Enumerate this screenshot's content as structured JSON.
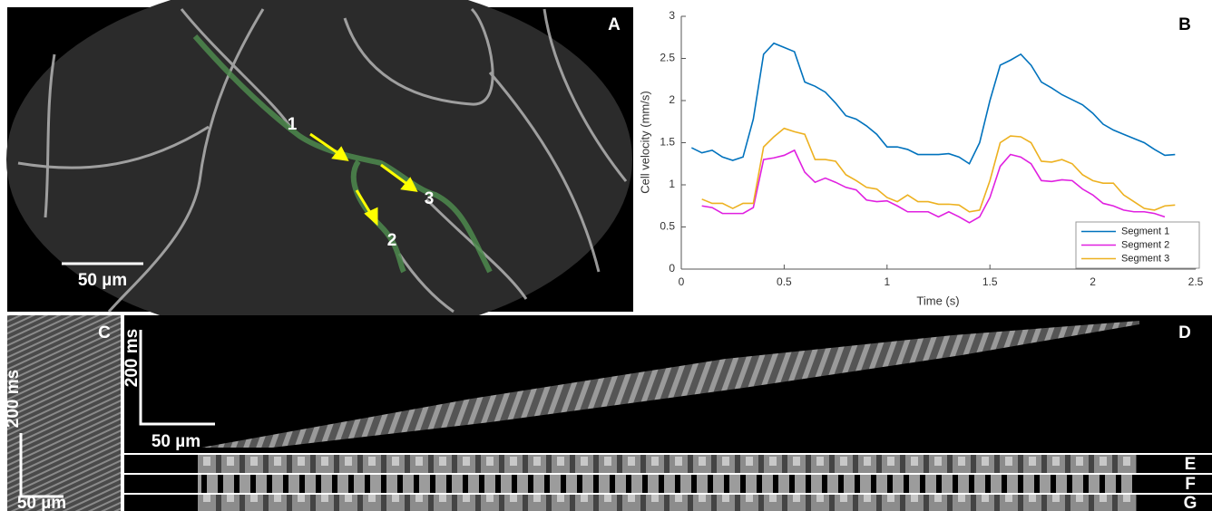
{
  "panels": {
    "a": {
      "label": "A",
      "markers": [
        "1",
        "2",
        "3"
      ],
      "scale_bar": "50 µm"
    },
    "c": {
      "label": "C",
      "time_bar": "200 ms",
      "scale_bar": "50 µm"
    },
    "d": {
      "label": "D",
      "time_bar": "200 ms",
      "scale_bar": "50 µm"
    },
    "e": {
      "label": "E"
    },
    "f": {
      "label": "F"
    },
    "g": {
      "label": "G"
    }
  },
  "chart_data": {
    "type": "line",
    "label": "B",
    "xlabel": "Time (s)",
    "ylabel": "Cell velocity (mm/s)",
    "x": [
      0.05,
      0.1,
      0.15,
      0.2,
      0.25,
      0.3,
      0.35,
      0.4,
      0.45,
      0.5,
      0.55,
      0.6,
      0.65,
      0.7,
      0.75,
      0.8,
      0.85,
      0.9,
      0.95,
      1,
      1.05,
      1.1,
      1.15,
      1.2,
      1.25,
      1.3,
      1.35,
      1.4,
      1.45,
      1.5,
      1.55,
      1.6,
      1.65,
      1.7,
      1.75,
      1.8,
      1.85,
      1.9,
      1.95,
      2,
      2.05,
      2.1,
      2.15,
      2.2,
      2.25,
      2.3,
      2.35,
      2.4
    ],
    "series": [
      {
        "name": "Segment 1",
        "color": "#0072bd",
        "values": [
          1.44,
          1.38,
          1.41,
          1.33,
          1.29,
          1.33,
          1.78,
          2.55,
          2.68,
          2.63,
          2.58,
          2.22,
          2.17,
          2.1,
          1.97,
          1.82,
          1.78,
          1.7,
          1.6,
          1.45,
          1.45,
          1.42,
          1.36,
          1.36,
          1.36,
          1.37,
          1.33,
          1.25,
          1.5,
          2,
          2.42,
          2.48,
          2.55,
          2.42,
          2.22,
          2.15,
          2.07,
          2.01,
          1.95,
          1.85,
          1.72,
          1.65,
          1.6,
          1.55,
          1.5,
          1.42,
          1.35,
          1.36
        ]
      },
      {
        "name": "Segment 2",
        "color": "#e020e0",
        "values": [
          null,
          0.75,
          0.73,
          0.66,
          0.66,
          0.66,
          0.73,
          1.3,
          1.32,
          1.35,
          1.41,
          1.15,
          1.03,
          1.08,
          1.03,
          0.97,
          0.94,
          0.82,
          0.8,
          0.81,
          0.75,
          0.68,
          0.68,
          0.68,
          0.62,
          0.68,
          0.62,
          0.55,
          0.62,
          0.85,
          1.22,
          1.36,
          1.33,
          1.25,
          1.05,
          1.04,
          1.06,
          1.05,
          0.95,
          0.88,
          0.78,
          0.75,
          0.7,
          0.68,
          0.68,
          0.66,
          0.62,
          null
        ]
      },
      {
        "name": "Segment 3",
        "color": "#edb120",
        "values": [
          null,
          0.83,
          0.78,
          0.78,
          0.72,
          0.78,
          0.78,
          1.45,
          1.57,
          1.67,
          1.63,
          1.6,
          1.3,
          1.3,
          1.28,
          1.12,
          1.05,
          0.97,
          0.95,
          0.85,
          0.8,
          0.88,
          0.8,
          0.8,
          0.77,
          0.77,
          0.76,
          0.68,
          0.7,
          1.05,
          1.5,
          1.58,
          1.57,
          1.5,
          1.28,
          1.27,
          1.3,
          1.25,
          1.12,
          1.05,
          1.02,
          1.02,
          0.88,
          0.8,
          0.72,
          0.7,
          0.75,
          0.76
        ]
      }
    ],
    "xlim": [
      0,
      2.5
    ],
    "xticks": [
      0,
      0.5,
      1,
      1.5,
      2,
      2.5
    ],
    "ylim": [
      0,
      3
    ],
    "yticks": [
      0,
      0.5,
      1,
      1.5,
      2,
      2.5,
      3
    ],
    "legend": "lower right"
  }
}
